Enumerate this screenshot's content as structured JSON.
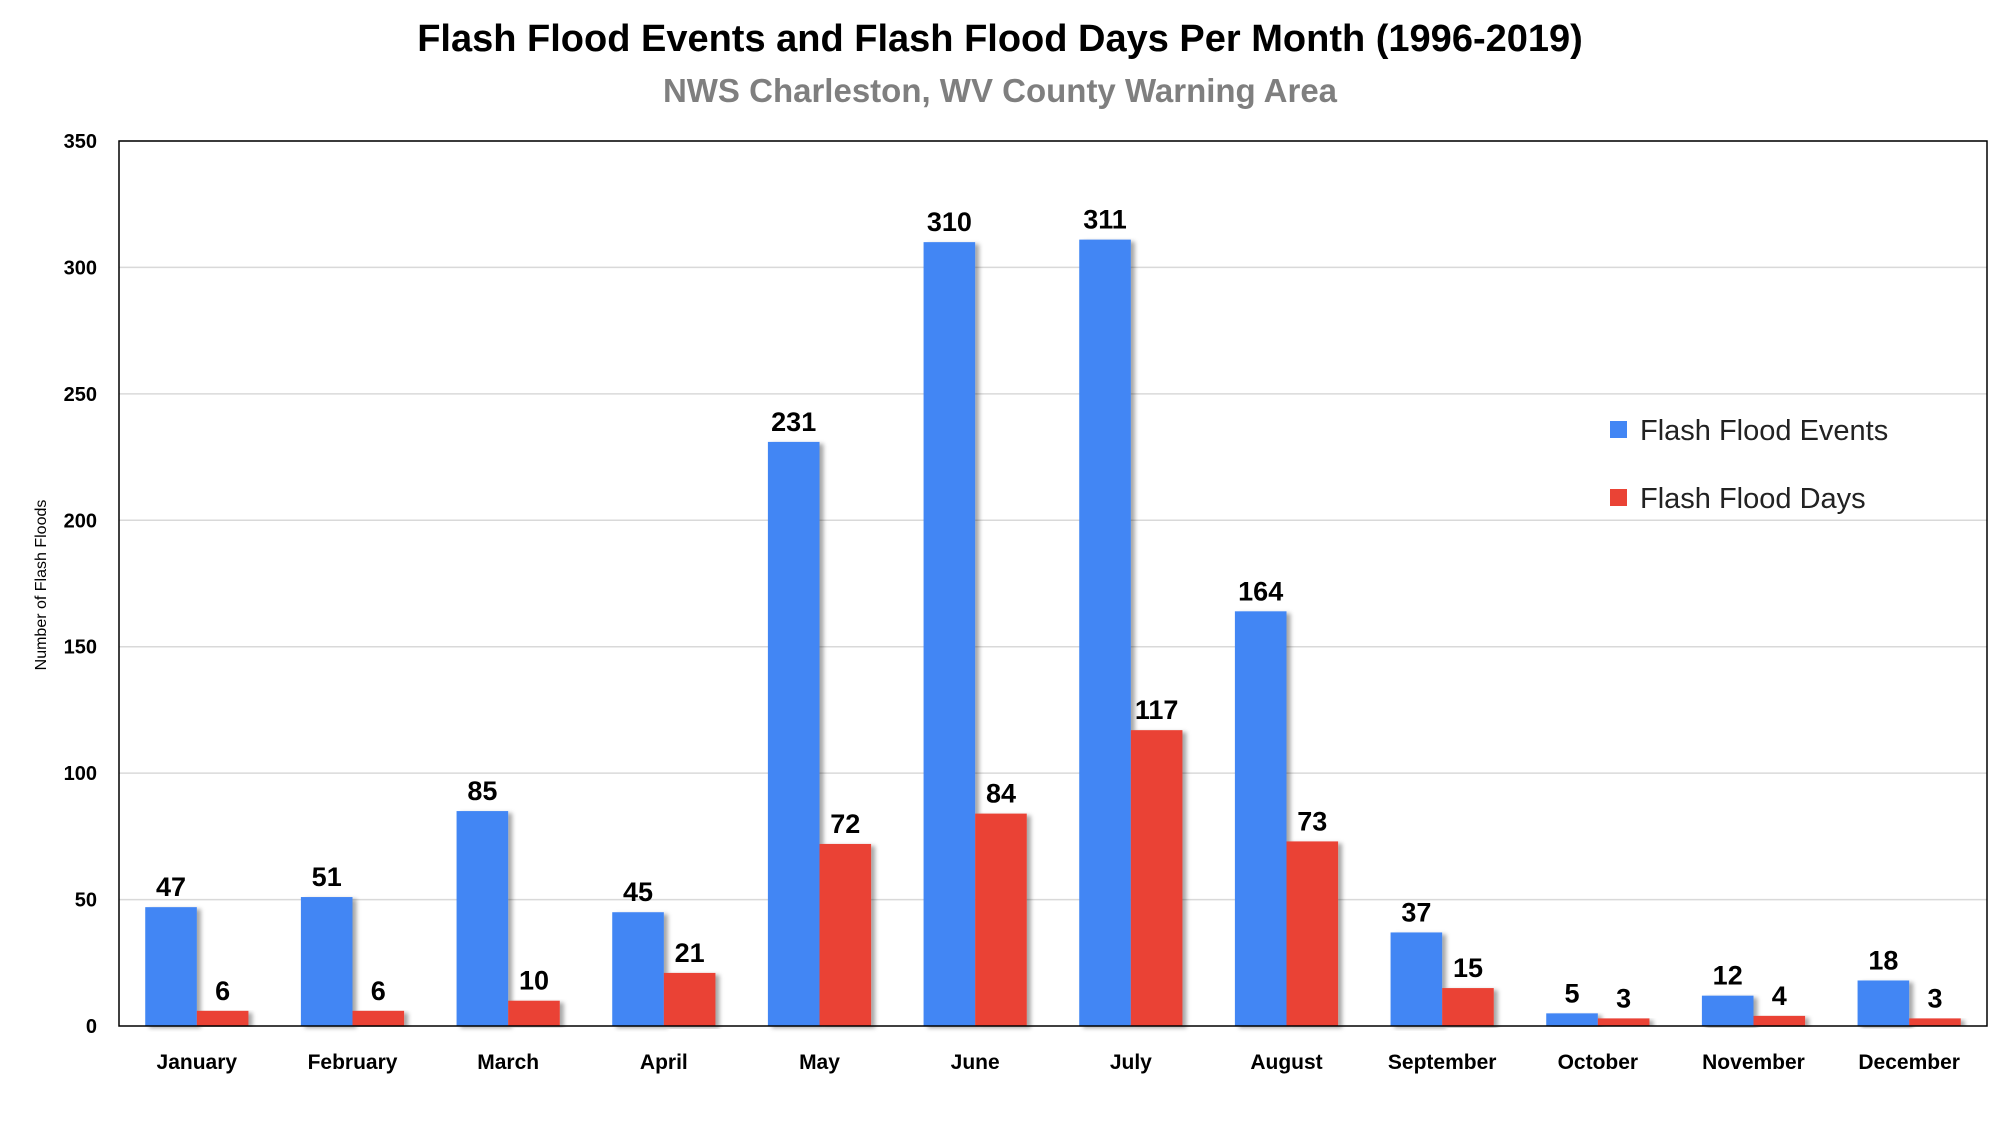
{
  "colors": {
    "events": "#4286f4",
    "days": "#ea4335",
    "grid": "#d9d9d9",
    "axis": "#000000"
  },
  "chart_data": {
    "type": "bar",
    "title": "Flash Flood Events and Flash Flood Days Per Month (1996-2019)",
    "subtitle": "NWS Charleston, WV County Warning Area",
    "ylabel": "Number of Flash Floods",
    "ylim": [
      0,
      350
    ],
    "yticks": [
      0,
      50,
      100,
      150,
      200,
      250,
      300,
      350
    ],
    "grid": true,
    "legend_position": "right",
    "categories": [
      "January",
      "February",
      "March",
      "April",
      "May",
      "June",
      "July",
      "August",
      "September",
      "October",
      "November",
      "December"
    ],
    "series": [
      {
        "name": "Flash Flood Events",
        "values": [
          47,
          51,
          85,
          45,
          231,
          310,
          311,
          164,
          37,
          5,
          12,
          18
        ]
      },
      {
        "name": "Flash Flood Days",
        "values": [
          6,
          6,
          10,
          21,
          72,
          84,
          117,
          73,
          15,
          3,
          4,
          3
        ]
      }
    ]
  }
}
